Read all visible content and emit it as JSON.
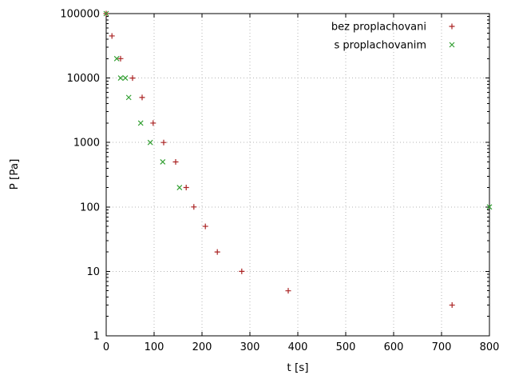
{
  "chart_data": {
    "type": "scatter",
    "title": "",
    "xlabel": "t [s]",
    "ylabel": "P [Pa]",
    "x_scale": "linear",
    "y_scale": "log",
    "xlim": [
      0,
      800
    ],
    "ylim": [
      1,
      100000
    ],
    "x_ticks": [
      0,
      100,
      200,
      300,
      400,
      500,
      600,
      700,
      800
    ],
    "y_ticks": [
      1,
      10,
      100,
      1000,
      10000,
      100000
    ],
    "grid": "dotted",
    "legend_position": "top-right-inside",
    "colors": {
      "background": "#ffffff",
      "border": "#000000",
      "grid": "#b4b4b4"
    },
    "series": [
      {
        "name": "bez proplachovani",
        "marker": "plus",
        "color": "#aa2222",
        "points": [
          [
            0,
            100000
          ],
          [
            12,
            45000
          ],
          [
            30,
            20000
          ],
          [
            55,
            10000
          ],
          [
            75,
            5000
          ],
          [
            98,
            2000
          ],
          [
            120,
            1000
          ],
          [
            145,
            500
          ],
          [
            167,
            200
          ],
          [
            183,
            100
          ],
          [
            207,
            50
          ],
          [
            232,
            20
          ],
          [
            283,
            10
          ],
          [
            380,
            5
          ],
          [
            722,
            3
          ]
        ]
      },
      {
        "name": "s proplachovanim",
        "marker": "cross",
        "color": "#33a033",
        "points": [
          [
            0,
            100000
          ],
          [
            22,
            20000
          ],
          [
            30,
            10000
          ],
          [
            40,
            10000
          ],
          [
            47,
            5000
          ],
          [
            72,
            2000
          ],
          [
            92,
            1000
          ],
          [
            118,
            500
          ],
          [
            153,
            200
          ],
          [
            800,
            100
          ]
        ]
      }
    ]
  }
}
